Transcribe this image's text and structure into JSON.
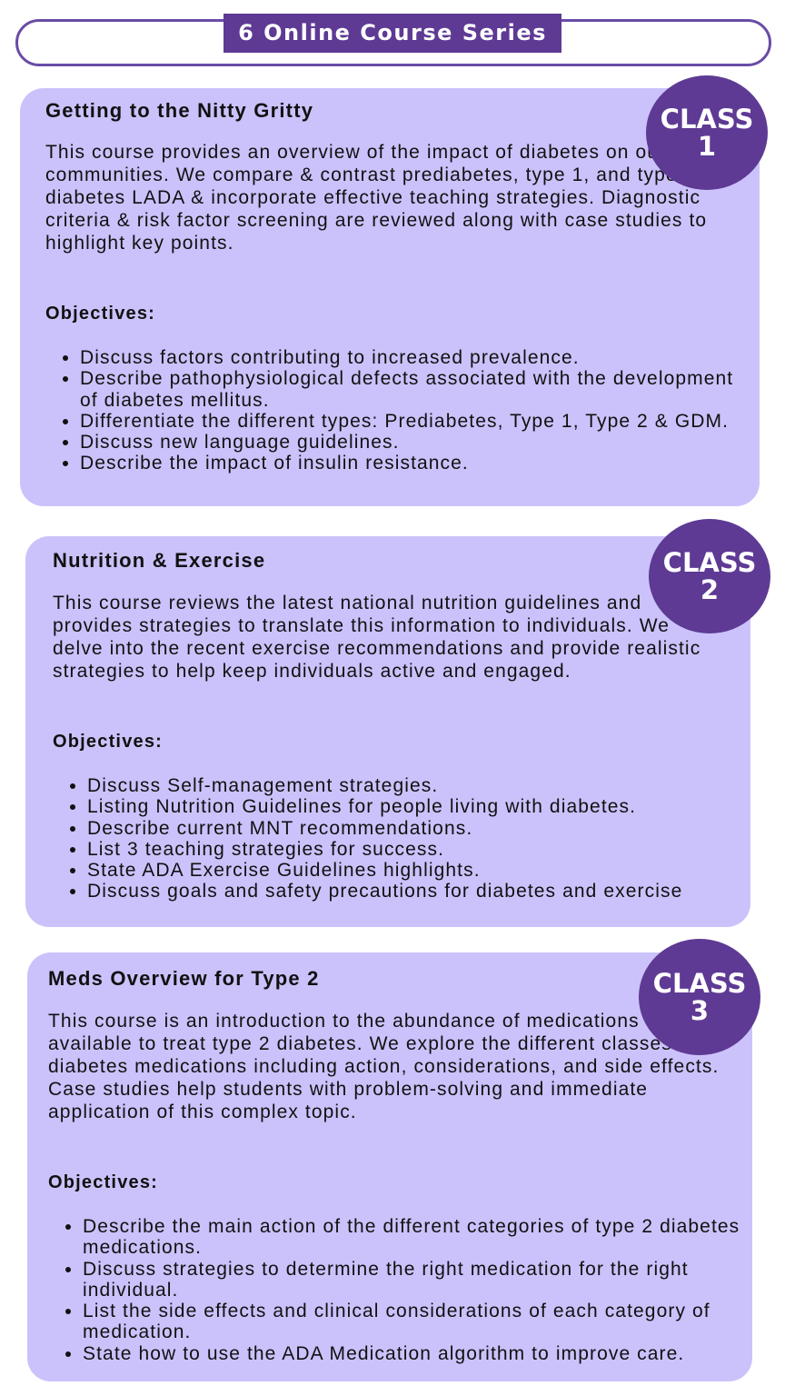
{
  "header": {
    "title": "6 Online Course Series"
  },
  "colors": {
    "accent": "#5e3a94",
    "card": "#cbc2fb"
  },
  "classes": [
    {
      "badge_label": "CLASS",
      "badge_number": "1",
      "title": "Getting to the Nitty Gritty",
      "description": "This course provides an overview of the impact of diabetes on our communities. We compare & contrast prediabetes, type 1, and type 2 diabetes LADA & incorporate effective teaching strategies. Diagnostic criteria & risk factor screening are reviewed along with case studies to highlight key points.",
      "objectives_label": "Objectives:",
      "objectives": [
        "Discuss factors contributing to increased prevalence.",
        "Describe pathophysiological defects associated with the development of diabetes mellitus.",
        "Differentiate the different types: Prediabetes, Type 1, Type 2 & GDM.",
        "Discuss new language guidelines.",
        "Describe the impact of insulin resistance."
      ]
    },
    {
      "badge_label": "CLASS",
      "badge_number": "2",
      "title": "Nutrition & Exercise",
      "description": "This course reviews the latest national nutrition guidelines and provides strategies to translate this information to individuals. We delve into the recent exercise recommendations and provide realistic strategies to help keep individuals active and engaged.",
      "objectives_label": "Objectives:",
      "objectives": [
        "Discuss Self-management strategies.",
        "Listing Nutrition Guidelines for people living with diabetes.",
        "Describe current MNT recommendations.",
        "List 3 teaching strategies for success.",
        "State ADA Exercise Guidelines highlights.",
        "Discuss goals and safety precautions for diabetes and exercise"
      ]
    },
    {
      "badge_label": "CLASS",
      "badge_number": "3",
      "title": "Meds Overview for Type 2",
      "description": "This course is an introduction to the abundance of medications available to treat type 2 diabetes. We explore the different classes of diabetes medications including action, considerations, and side effects. Case studies help students with problem-solving and immediate application of this complex topic.",
      "objectives_label": "Objectives:",
      "objectives": [
        "Describe the main action of the different categories of type 2 diabetes medications.",
        "Discuss strategies to determine the right medication for the right individual.",
        "List the side effects and clinical considerations of each category of medication.",
        "State how to use the ADA Medication algorithm to improve care."
      ]
    }
  ]
}
